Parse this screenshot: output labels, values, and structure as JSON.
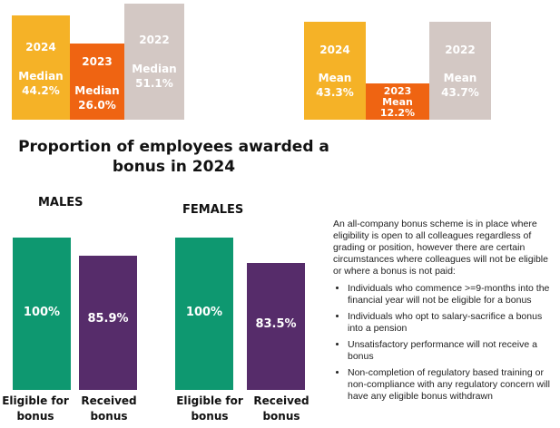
{
  "chart_data": [
    {
      "type": "bar",
      "title": "",
      "categories": [
        "2024",
        "2023",
        "2022"
      ],
      "labels": [
        "Median",
        "Median",
        "Median"
      ],
      "values": [
        44.2,
        26.0,
        51.1
      ],
      "value_labels": [
        "44.2%",
        "26.0%",
        "51.1%"
      ]
    },
    {
      "type": "bar",
      "title": "",
      "categories": [
        "2024",
        "2023",
        "2022"
      ],
      "labels": [
        "Mean",
        "Mean",
        "Mean"
      ],
      "values": [
        43.3,
        12.2,
        43.7
      ],
      "value_labels": [
        "43.3%",
        "12.2%",
        "43.7%"
      ]
    },
    {
      "type": "bar",
      "title": "Proportion of employees awarded a bonus in 2024",
      "groups": [
        {
          "name": "MALES",
          "categories": [
            "Eligible for bonus",
            "Received bonus"
          ],
          "values": [
            100,
            85.9
          ],
          "value_labels": [
            "100%",
            "85.9%"
          ]
        },
        {
          "name": "FEMALES",
          "categories": [
            "Eligible for bonus",
            "Received bonus"
          ],
          "values": [
            100,
            83.5
          ],
          "value_labels": [
            "100%",
            "83.5%"
          ]
        }
      ]
    }
  ],
  "colors": {
    "y2024": "#F5B227",
    "y2023": "#EF6412",
    "y2022": "#D3C8C4",
    "eligible": "#0E9870",
    "received": "#562C6A"
  },
  "title_line1": "Proportion of employees awarded a",
  "title_line2": "bonus in 2024",
  "notes": {
    "intro": "An all-company bonus scheme is in place where eligibility is open to all colleagues regardless of grading or position, however there are certain circumstances where colleagues will not be eligible or where a bonus is not paid:",
    "bullets": [
      "Individuals who commence >=9-months into the financial year will not be eligible for a bonus",
      "Individuals who opt to salary-sacrifice a bonus into a pension",
      "Unsatisfactory performance will not receive a bonus",
      "Non-completion of regulatory based training or non-compliance with any regulatory concern will have any eligible bonus withdrawn"
    ]
  }
}
